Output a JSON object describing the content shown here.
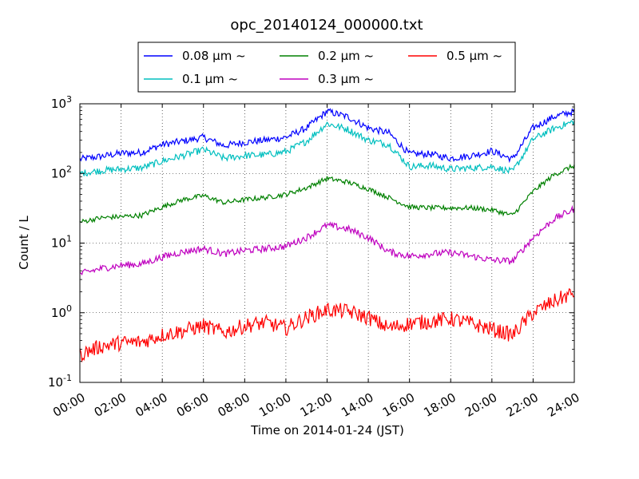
{
  "chart_data": {
    "type": "line",
    "title": "opc_20140124_000000.txt",
    "xlabel": "Time on 2014-01-24 (JST)",
    "ylabel": "Count / L",
    "yscale": "log",
    "ylim": [
      0.1,
      1000
    ],
    "xlim": [
      "00:00",
      "24:00"
    ],
    "grid": true,
    "legend_placement": "top-center",
    "x_ticks": [
      "00:00",
      "02:00",
      "04:00",
      "06:00",
      "08:00",
      "10:00",
      "12:00",
      "14:00",
      "16:00",
      "18:00",
      "20:00",
      "22:00",
      "24:00"
    ],
    "y_tick_bases": [
      "10",
      "10",
      "10",
      "10",
      "10"
    ],
    "y_tick_exponents": [
      "-1",
      "0",
      "1",
      "2",
      "3"
    ],
    "x": [
      "00:00",
      "01:00",
      "02:00",
      "03:00",
      "04:00",
      "05:00",
      "06:00",
      "07:00",
      "08:00",
      "09:00",
      "10:00",
      "11:00",
      "12:00",
      "13:00",
      "14:00",
      "15:00",
      "16:00",
      "17:00",
      "18:00",
      "19:00",
      "20:00",
      "21:00",
      "22:00",
      "23:00",
      "24:00"
    ],
    "series": [
      {
        "name": "0.08 μm ~",
        "color": "#0000ff",
        "values": [
          160,
          175,
          195,
          200,
          260,
          290,
          330,
          250,
          280,
          300,
          330,
          450,
          780,
          650,
          450,
          380,
          190,
          190,
          165,
          180,
          210,
          160,
          450,
          650,
          780
        ]
      },
      {
        "name": "0.1 μm ~",
        "color": "#00bfbf",
        "values": [
          100,
          110,
          115,
          120,
          150,
          180,
          220,
          165,
          180,
          185,
          205,
          290,
          520,
          430,
          300,
          260,
          125,
          130,
          115,
          120,
          125,
          105,
          310,
          440,
          560
        ]
      },
      {
        "name": "0.2 μm ~",
        "color": "#008000",
        "values": [
          20,
          23,
          24,
          25,
          33,
          42,
          48,
          38,
          42,
          45,
          50,
          62,
          85,
          75,
          60,
          45,
          33,
          32,
          32,
          32,
          30,
          25,
          55,
          95,
          130
        ]
      },
      {
        "name": "0.3 μm ~",
        "color": "#bf00bf",
        "values": [
          3.6,
          4.3,
          4.8,
          5.0,
          6.3,
          7.5,
          8.3,
          7.0,
          7.8,
          8.3,
          9.0,
          12,
          18,
          16,
          12,
          7.5,
          6.5,
          7.0,
          7.3,
          6.5,
          5.7,
          5.5,
          12,
          22,
          31
        ]
      },
      {
        "name": "0.5 μm ~",
        "color": "#ff0000",
        "values": [
          0.25,
          0.33,
          0.37,
          0.38,
          0.48,
          0.55,
          0.65,
          0.52,
          0.65,
          0.72,
          0.6,
          0.85,
          1.1,
          1.05,
          0.85,
          0.6,
          0.7,
          0.75,
          0.82,
          0.7,
          0.58,
          0.48,
          1.0,
          1.45,
          1.95
        ]
      }
    ]
  }
}
